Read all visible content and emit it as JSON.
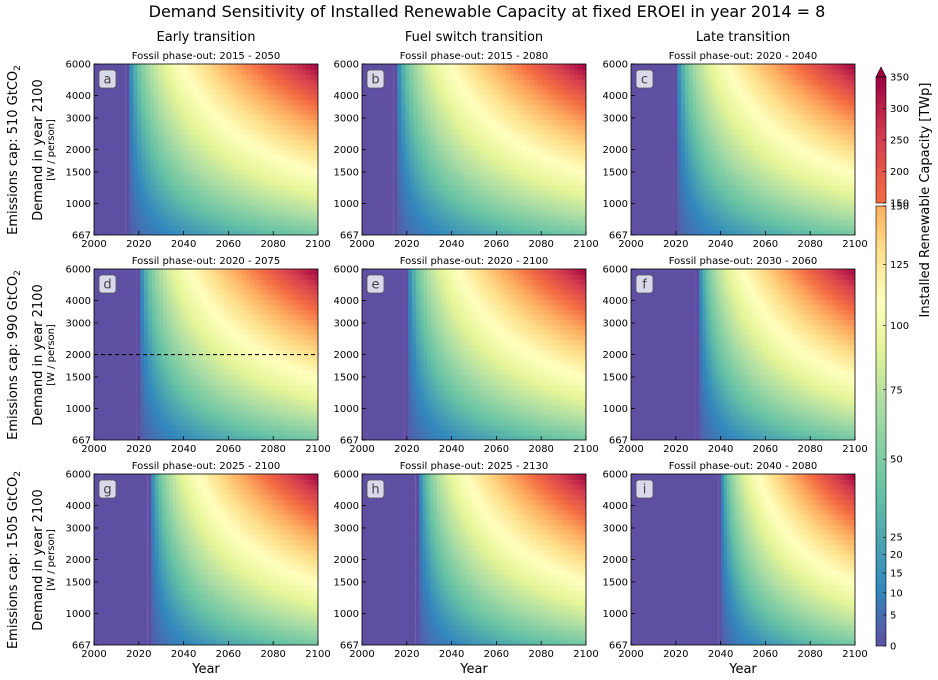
{
  "figure": {
    "title": "Demand Sensitivity of Installed Renewable Capacity at fixed EROEI in year 2014 = 8",
    "column_titles": [
      "Early transition",
      "Fuel switch transition",
      "Late transition"
    ],
    "row_labels": [
      {
        "main": "Emissions cap: 510 GtCO",
        "sub": "2",
        "demand": "Demand in year 2100",
        "unit": "[W / person]"
      },
      {
        "main": "Emissions cap: 990 GtCO",
        "sub": "2",
        "demand": "Demand in year 2100",
        "unit": "[W / person]"
      },
      {
        "main": "Emissions cap: 1505 GtCO",
        "sub": "2",
        "demand": "Demand in year 2100",
        "unit": "[W / person]"
      }
    ],
    "xlabel": "Year",
    "colorbar": {
      "label": "Installed Renewable Capacity [TWp]",
      "upper_ticks": [
        "150",
        "200",
        "250",
        "300",
        "350"
      ],
      "lower_ticks": [
        "0",
        "5",
        "10",
        "15",
        "20",
        "25",
        "50",
        "75",
        "100",
        "125",
        "150"
      ]
    }
  },
  "chart_data": [
    {
      "type": "heatmap",
      "panel": "a",
      "title": "Fossil phase-out: 2015 - 2050",
      "transition_year": 2015,
      "x_ticks": [
        "2000",
        "2020",
        "2040",
        "2060",
        "2080",
        "2100"
      ],
      "y_ticks": [
        "667",
        "1000",
        "1500",
        "2000",
        "3000",
        "4000",
        "6000"
      ],
      "xlim": [
        2000,
        2100
      ],
      "ylim": [
        667,
        6000
      ],
      "yscale": "log"
    },
    {
      "type": "heatmap",
      "panel": "b",
      "title": "Fossil phase-out: 2015 - 2080",
      "transition_year": 2015,
      "x_ticks": [
        "2000",
        "2020",
        "2040",
        "2060",
        "2080",
        "2100"
      ],
      "y_ticks": [
        "667",
        "1000",
        "1500",
        "2000",
        "3000",
        "4000",
        "6000"
      ],
      "xlim": [
        2000,
        2100
      ],
      "ylim": [
        667,
        6000
      ],
      "yscale": "log"
    },
    {
      "type": "heatmap",
      "panel": "c",
      "title": "Fossil phase-out: 2020 - 2040",
      "transition_year": 2020,
      "x_ticks": [
        "2000",
        "2020",
        "2040",
        "2060",
        "2080",
        "2100"
      ],
      "y_ticks": [
        "667",
        "1000",
        "1500",
        "2000",
        "3000",
        "4000",
        "6000"
      ],
      "xlim": [
        2000,
        2100
      ],
      "ylim": [
        667,
        6000
      ],
      "yscale": "log"
    },
    {
      "type": "heatmap",
      "panel": "d",
      "title": "Fossil phase-out: 2020 - 2075",
      "transition_year": 2020,
      "reference_line_y": 2000,
      "x_ticks": [
        "2000",
        "2020",
        "2040",
        "2060",
        "2080",
        "2100"
      ],
      "y_ticks": [
        "667",
        "1000",
        "1500",
        "2000",
        "3000",
        "4000",
        "6000"
      ],
      "xlim": [
        2000,
        2100
      ],
      "ylim": [
        667,
        6000
      ],
      "yscale": "log"
    },
    {
      "type": "heatmap",
      "panel": "e",
      "title": "Fossil phase-out: 2020 - 2100",
      "transition_year": 2020,
      "x_ticks": [
        "2000",
        "2020",
        "2040",
        "2060",
        "2080",
        "2100"
      ],
      "y_ticks": [
        "667",
        "1000",
        "1500",
        "2000",
        "3000",
        "4000",
        "6000"
      ],
      "xlim": [
        2000,
        2100
      ],
      "ylim": [
        667,
        6000
      ],
      "yscale": "log"
    },
    {
      "type": "heatmap",
      "panel": "f",
      "title": "Fossil phase-out: 2030 - 2060",
      "transition_year": 2030,
      "x_ticks": [
        "2000",
        "2020",
        "2040",
        "2060",
        "2080",
        "2100"
      ],
      "y_ticks": [
        "667",
        "1000",
        "1500",
        "2000",
        "3000",
        "4000",
        "6000"
      ],
      "xlim": [
        2000,
        2100
      ],
      "ylim": [
        667,
        6000
      ],
      "yscale": "log"
    },
    {
      "type": "heatmap",
      "panel": "g",
      "title": "Fossil phase-out: 2025 - 2100",
      "transition_year": 2025,
      "x_ticks": [
        "2000",
        "2020",
        "2040",
        "2060",
        "2080",
        "2100"
      ],
      "y_ticks": [
        "667",
        "1000",
        "1500",
        "2000",
        "3000",
        "4000",
        "6000"
      ],
      "xlim": [
        2000,
        2100
      ],
      "ylim": [
        667,
        6000
      ],
      "yscale": "log"
    },
    {
      "type": "heatmap",
      "panel": "h",
      "title": "Fossil phase-out: 2025 - 2130",
      "transition_year": 2025,
      "x_ticks": [
        "2000",
        "2020",
        "2040",
        "2060",
        "2080",
        "2100"
      ],
      "y_ticks": [
        "667",
        "1000",
        "1500",
        "2000",
        "3000",
        "4000",
        "6000"
      ],
      "xlim": [
        2000,
        2100
      ],
      "ylim": [
        667,
        6000
      ],
      "yscale": "log"
    },
    {
      "type": "heatmap",
      "panel": "i",
      "title": "Fossil phase-out: 2040 - 2080",
      "transition_year": 2040,
      "x_ticks": [
        "2000",
        "2020",
        "2040",
        "2060",
        "2080",
        "2100"
      ],
      "y_ticks": [
        "667",
        "1000",
        "1500",
        "2000",
        "3000",
        "4000",
        "6000"
      ],
      "xlim": [
        2000,
        2100
      ],
      "ylim": [
        667,
        6000
      ],
      "yscale": "log"
    }
  ],
  "contour_levels": [
    "25",
    "50",
    "75",
    "100",
    "125",
    "150",
    "175",
    "200",
    "225",
    "250",
    "275",
    "300"
  ],
  "colors": {
    "scale": [
      "#5e4fa2",
      "#3288bd",
      "#66c2a5",
      "#abdda4",
      "#e6f598",
      "#ffffbf",
      "#fee08b",
      "#fdae61",
      "#f46d43",
      "#d53e4f",
      "#9e0142"
    ]
  }
}
